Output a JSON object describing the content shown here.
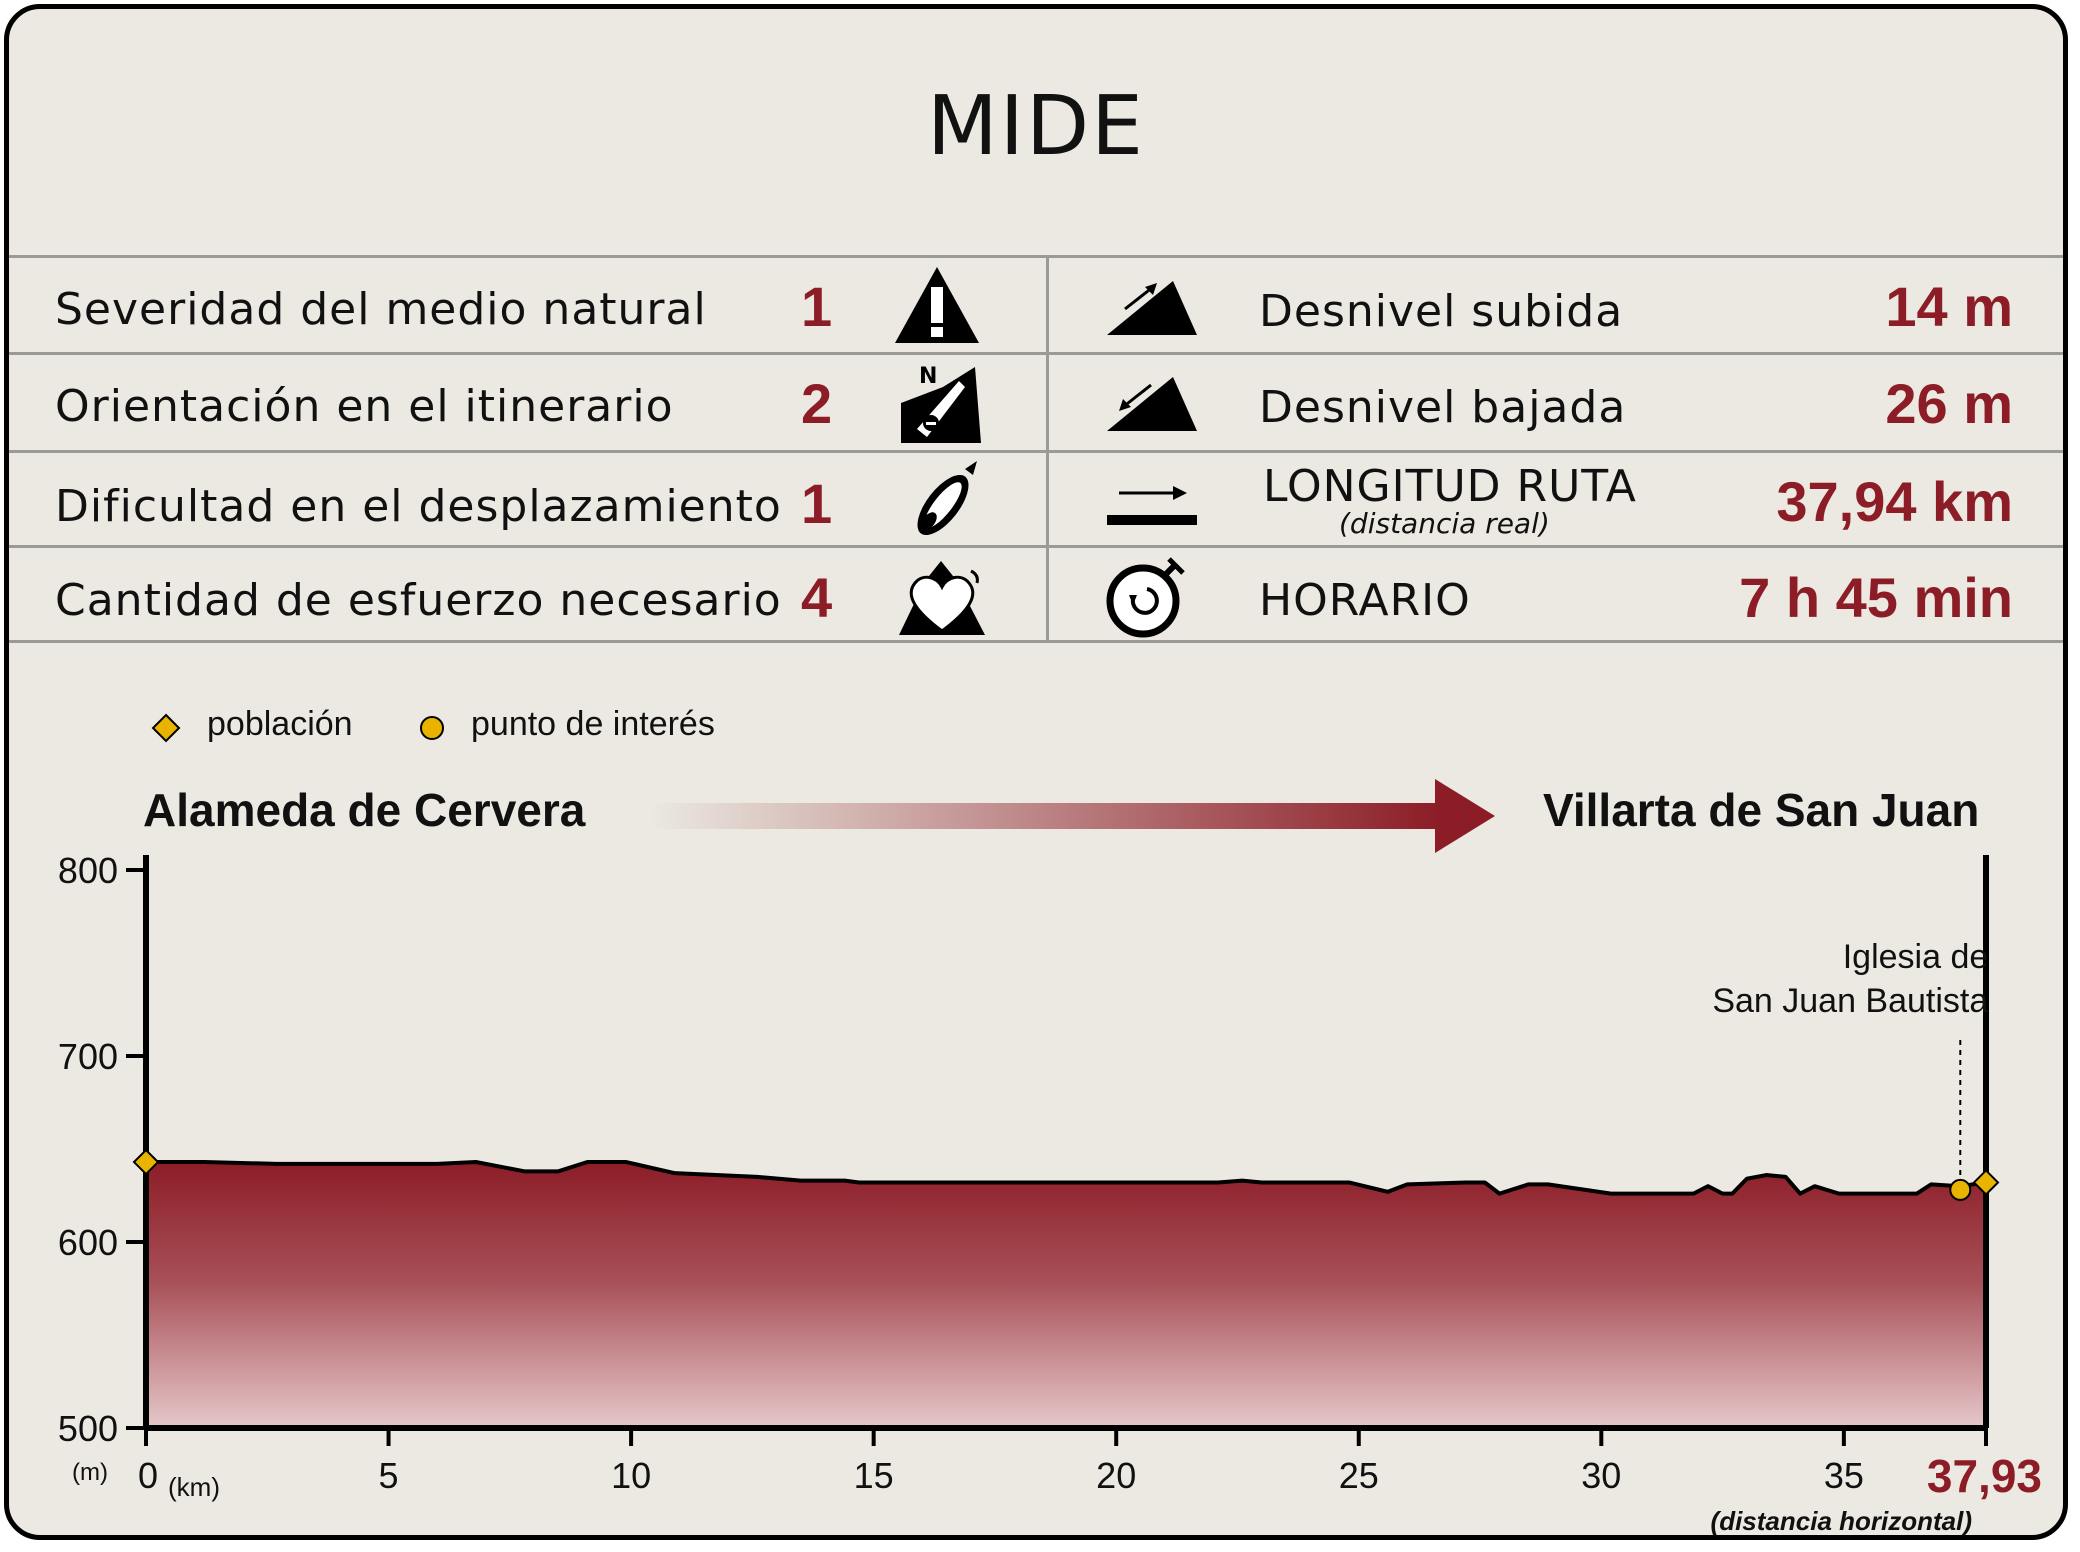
{
  "title": "MIDE",
  "mide_rows": [
    {
      "label": "Severidad del medio natural",
      "score": "1",
      "icon": "warning-mountain-icon"
    },
    {
      "label": "Orientación en el itinerario",
      "score": "2",
      "icon": "orientation-compass-icon"
    },
    {
      "label": "Dificultad en el desplazamiento",
      "score": "1",
      "icon": "footprint-icon"
    },
    {
      "label": "Cantidad de esfuerzo necesario",
      "score": "4",
      "icon": "heart-effort-icon"
    }
  ],
  "route_info": [
    {
      "label": "Desnivel subida",
      "value": "14 m",
      "icon": "ascent-icon"
    },
    {
      "label": "Desnivel bajada",
      "value": "26 m",
      "icon": "descent-icon"
    },
    {
      "label": "LONGITUD RUTA",
      "sublabel": "(distancia real)",
      "value": "37,94 km",
      "icon": "length-arrow-icon"
    },
    {
      "label": "HORARIO",
      "value": "7 h 45 min",
      "icon": "stopwatch-icon"
    }
  ],
  "legend": [
    {
      "label": "población",
      "icon": "diamond-marker-icon"
    },
    {
      "label": "punto de interés",
      "icon": "circle-marker-icon"
    }
  ],
  "start_place": "Alameda de Cervera",
  "end_place": "Villarta de San Juan",
  "colors": {
    "accent": "#8c1d27",
    "background": "#ebe9e1",
    "marker": "#e8b400"
  },
  "chart_data": {
    "type": "area",
    "ylabel": "(m)",
    "xlabel": "(km)",
    "xlim": [
      0,
      37.93
    ],
    "ylim": [
      500,
      800
    ],
    "yticks": [
      500,
      600,
      700,
      800
    ],
    "xticks": [
      0,
      5,
      10,
      15,
      20,
      25,
      30,
      35
    ],
    "x_end_label": "37,93",
    "x_end_sublabel": "(distancia horizontal)",
    "series": [
      {
        "x": [
          0,
          1.2,
          2.7,
          4.5,
          6,
          6.8,
          7.8,
          8.5,
          9.1,
          9.9,
          10.9,
          12.6,
          13.5,
          14.4,
          14.7,
          22.1,
          22.6,
          23,
          24.8,
          25.6,
          26,
          27.2,
          27.6,
          27.9,
          28.5,
          28.9,
          30.2,
          31.9,
          32.2,
          32.5,
          32.7,
          33,
          33.4,
          33.8,
          34.1,
          34.4,
          34.9,
          35.2,
          35.6,
          36.5,
          36.8,
          37.4,
          37.93
        ],
        "y": [
          643,
          643,
          642,
          642,
          642,
          643,
          638,
          638,
          643,
          643,
          637,
          635,
          633,
          633,
          632,
          632,
          633,
          632,
          632,
          627,
          631,
          632,
          632,
          626,
          631,
          631,
          626,
          626,
          630,
          626,
          626,
          634,
          636,
          635,
          626,
          630,
          626,
          626,
          626,
          626,
          631,
          630,
          632
        ]
      }
    ],
    "markers": [
      {
        "type": "población",
        "x": 0,
        "y": 643
      },
      {
        "type": "punto de interés",
        "x": 37.4,
        "y": 628,
        "label_lines": [
          "Iglesia de",
          "San Juan Bautista"
        ]
      },
      {
        "type": "población",
        "x": 37.93,
        "y": 632
      }
    ]
  }
}
